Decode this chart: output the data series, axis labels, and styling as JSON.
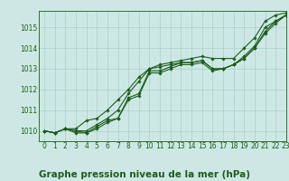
{
  "background_color": "#cde8e4",
  "grid_color": "#aacfca",
  "line_color": "#1e5c1e",
  "title": "Graphe pression niveau de la mer (hPa)",
  "xlim": [
    -0.5,
    23
  ],
  "ylim": [
    1009.5,
    1015.8
  ],
  "xticks": [
    0,
    1,
    2,
    3,
    4,
    5,
    6,
    7,
    8,
    9,
    10,
    11,
    12,
    13,
    14,
    15,
    16,
    17,
    18,
    19,
    20,
    21,
    22,
    23
  ],
  "yticks": [
    1010,
    1011,
    1012,
    1013,
    1014,
    1015
  ],
  "series": [
    [
      1010.0,
      1009.9,
      1010.1,
      1010.0,
      1010.0,
      1010.3,
      1010.6,
      1011.0,
      1011.8,
      1012.4,
      1013.0,
      1013.1,
      1013.2,
      1013.3,
      1013.3,
      1013.4,
      1013.0,
      1013.0,
      1013.2,
      1013.6,
      1014.1,
      1015.0,
      1015.3,
      1015.6
    ],
    [
      1010.0,
      1009.9,
      1010.1,
      1010.0,
      1009.9,
      1010.2,
      1010.5,
      1010.6,
      1011.6,
      1011.8,
      1012.9,
      1012.9,
      1013.1,
      1013.3,
      1013.3,
      1013.4,
      1013.0,
      1013.0,
      1013.2,
      1013.5,
      1014.0,
      1014.8,
      1015.3,
      1015.6
    ],
    [
      1010.0,
      1009.9,
      1010.1,
      1009.9,
      1009.9,
      1010.1,
      1010.4,
      1010.6,
      1011.5,
      1011.7,
      1012.8,
      1012.8,
      1013.0,
      1013.2,
      1013.2,
      1013.3,
      1012.9,
      1013.0,
      1013.2,
      1013.5,
      1014.0,
      1014.7,
      1015.2,
      1015.6
    ],
    [
      1010.0,
      1009.9,
      1010.1,
      1010.1,
      1010.5,
      1010.6,
      1011.0,
      1011.5,
      1012.0,
      1012.6,
      1013.0,
      1013.2,
      1013.3,
      1013.4,
      1013.5,
      1013.6,
      1013.5,
      1013.5,
      1013.5,
      1014.0,
      1014.5,
      1015.3,
      1015.6,
      1015.7
    ]
  ],
  "marker": "D",
  "markersize": 1.8,
  "linewidth": 0.8,
  "title_fontsize": 7.5,
  "tick_fontsize": 5.5,
  "fig_width": 3.2,
  "fig_height": 2.0,
  "dpi": 100
}
